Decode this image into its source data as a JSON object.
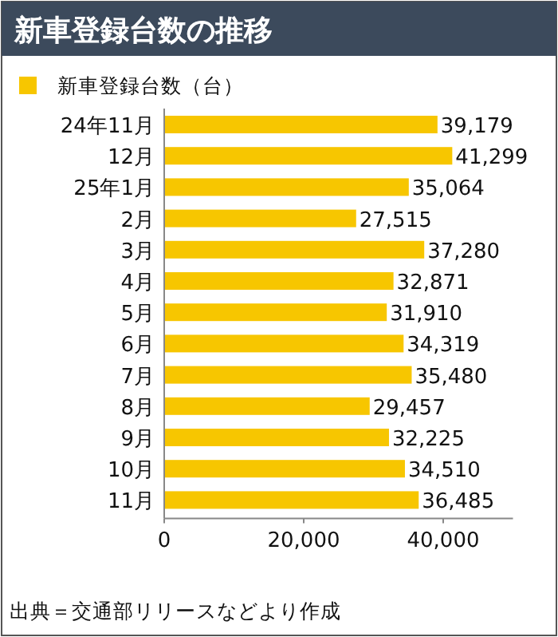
{
  "chart_data": {
    "type": "bar",
    "orientation": "horizontal",
    "title": "新車登録台数の推移",
    "categories": [
      "24年11月",
      "12月",
      "25年1月",
      "2月",
      "3月",
      "4月",
      "5月",
      "6月",
      "7月",
      "8月",
      "9月",
      "10月",
      "11月"
    ],
    "series": [
      {
        "name": "新車登録台数（台）",
        "color": "#f7c600",
        "values": [
          39179,
          41299,
          35064,
          27515,
          37280,
          32871,
          31910,
          34319,
          35480,
          29457,
          32225,
          34510,
          36485
        ]
      }
    ],
    "value_labels": [
      "39,179",
      "41,299",
      "35,064",
      "27,515",
      "37,280",
      "32,871",
      "31,910",
      "34,319",
      "35,480",
      "29,457",
      "32,225",
      "34,510",
      "36,485"
    ],
    "xlim": [
      0,
      50000
    ],
    "xticks": [
      {
        "value": 0,
        "label": "0"
      },
      {
        "value": 20000,
        "label": "20,000"
      },
      {
        "value": 40000,
        "label": "40,000"
      }
    ],
    "grid": false,
    "legend": "top left",
    "annotations": [
      "出典＝交通部リリースなどより作成"
    ]
  }
}
